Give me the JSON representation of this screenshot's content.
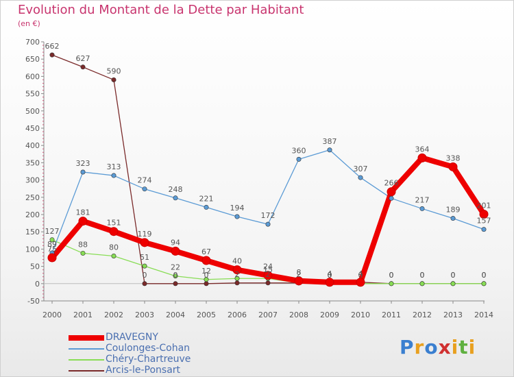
{
  "title": "Evolution du Montant de la Dette par Habitant",
  "subtitle": "(en €)",
  "logo": {
    "text": "Proxiti",
    "colors": [
      "#3a7fd0",
      "#e8a020",
      "#3a7fd0",
      "#d03030",
      "#e8a020",
      "#5fb040",
      "#e8a020"
    ]
  },
  "chart_data": {
    "type": "line",
    "title": "Evolution du Montant de la Dette par Habitant",
    "subtitle": "(en €)",
    "xlabel": "",
    "ylabel": "",
    "x": [
      2000,
      2001,
      2002,
      2003,
      2004,
      2005,
      2006,
      2007,
      2008,
      2009,
      2010,
      2011,
      2012,
      2013,
      2014
    ],
    "ylim": [
      -50,
      700
    ],
    "yticks": [
      -50,
      0,
      50,
      100,
      150,
      200,
      250,
      300,
      350,
      400,
      450,
      500,
      550,
      600,
      650,
      700
    ],
    "grid": false,
    "legend_position": "bottom-left",
    "series": [
      {
        "name": "DRAVEGNY",
        "color": "#ee0000",
        "values": [
          75,
          181,
          151,
          119,
          94,
          67,
          40,
          24,
          8,
          4,
          4,
          266,
          364,
          338,
          201
        ],
        "labels": [
          "75",
          "181",
          "151",
          "119",
          "94",
          "67",
          "40",
          "24",
          "8",
          "4",
          "4",
          "266",
          "364",
          "338",
          "201"
        ]
      },
      {
        "name": "Coulonges-Cohan",
        "color": "#5b9bd5",
        "values": [
          89,
          323,
          313,
          274,
          248,
          221,
          194,
          172,
          360,
          387,
          307,
          247,
          217,
          189,
          157
        ],
        "labels": [
          "89",
          "323",
          "313",
          "274",
          "248",
          "221",
          "194",
          "172",
          "360",
          "387",
          "307",
          "",
          "217",
          "189",
          "157"
        ]
      },
      {
        "name": "Chéry-Chartreuve",
        "color": "#88dd55",
        "values": [
          127,
          88,
          80,
          51,
          22,
          12,
          15,
          15,
          2,
          0,
          0,
          0,
          0,
          0,
          0
        ],
        "labels": [
          "127",
          "88",
          "80",
          "51",
          "22",
          "12",
          "",
          "15",
          "2",
          "0",
          "0",
          "0",
          "0",
          "0",
          "0"
        ]
      },
      {
        "name": "Arcis-le-Ponsart",
        "color": "#7a2a2a",
        "values": [
          662,
          627,
          590,
          0,
          0,
          0,
          2,
          2,
          2,
          0,
          4,
          0,
          0,
          0,
          0
        ],
        "labels": [
          "662",
          "627",
          "590",
          "0",
          "0",
          "0",
          "2",
          "2",
          "",
          "0",
          "",
          "0",
          "0",
          "0",
          "0"
        ]
      }
    ]
  }
}
